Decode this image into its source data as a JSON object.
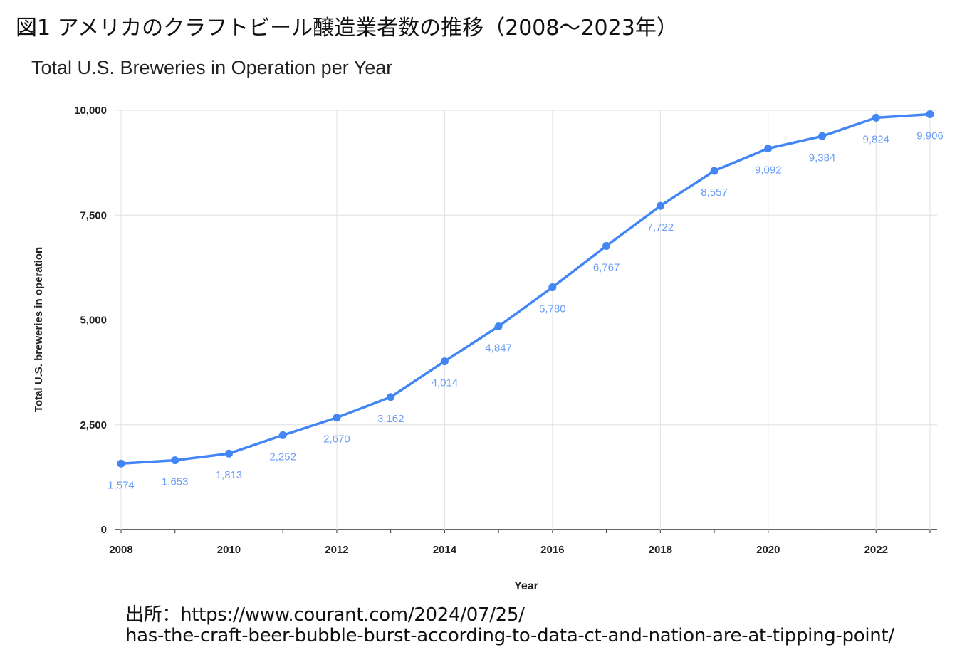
{
  "figure_title": "図1 アメリカのクラフトビール醸造業者数の推移（2008〜2023年）",
  "source": {
    "line1": "出所：https://www.courant.com/2024/07/25/",
    "line2": "has-the-craft-beer-bubble-burst-according-to-data-ct-and-nation-are-at-tipping-point/"
  },
  "chart_data": {
    "type": "line",
    "title": "Total U.S. Breweries in Operation per Year",
    "xlabel": "Year",
    "ylabel": "Total U.S. breweries in operation",
    "x": [
      2008,
      2009,
      2010,
      2011,
      2012,
      2013,
      2014,
      2015,
      2016,
      2017,
      2018,
      2019,
      2020,
      2021,
      2022,
      2023
    ],
    "values": [
      1574,
      1653,
      1813,
      2252,
      2670,
      3162,
      4014,
      4847,
      5780,
      6767,
      7722,
      8557,
      9092,
      9384,
      9824,
      9906
    ],
    "data_labels": [
      "1,574",
      "1,653",
      "1,813",
      "2,252",
      "2,670",
      "3,162",
      "4,014",
      "4,847",
      "5,780",
      "6,767",
      "7,722",
      "8,557",
      "9,092",
      "9,384",
      "9,824",
      "9,906"
    ],
    "ylim": [
      0,
      10000
    ],
    "yticks": [
      0,
      2500,
      5000,
      7500,
      10000
    ],
    "ytick_labels": [
      "0",
      "2,500",
      "5,000",
      "7,500",
      "10,000"
    ],
    "xticks": [
      2008,
      2010,
      2012,
      2014,
      2016,
      2018,
      2020,
      2022
    ],
    "xtick_labels": [
      "2008",
      "2010",
      "2012",
      "2014",
      "2016",
      "2018",
      "2020",
      "2022"
    ],
    "grid": true,
    "legend": "none",
    "line_color": "#4285f4",
    "label_color": "#6a9cf5"
  }
}
